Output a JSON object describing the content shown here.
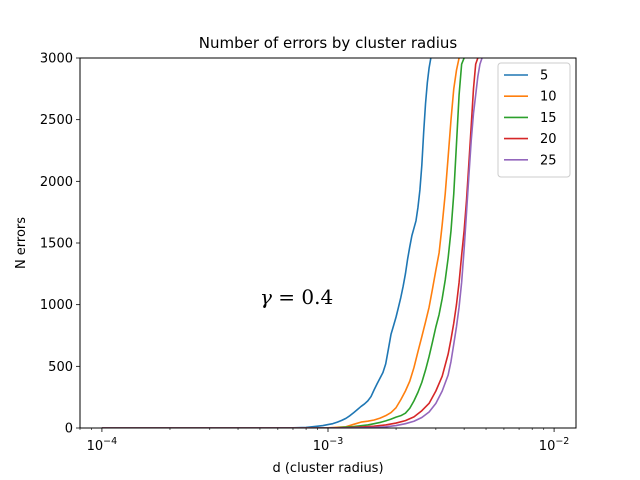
{
  "chart_data": {
    "type": "line",
    "title": "Number of errors by cluster radius",
    "xlabel": "d (cluster radius)",
    "ylabel": "N errors",
    "xscale": "log",
    "xlim": [
      8e-05,
      0.0125
    ],
    "ylim": [
      0,
      3000
    ],
    "xticks": [
      {
        "value": 0.0001,
        "base": "10",
        "exp": "−4"
      },
      {
        "value": 0.001,
        "base": "10",
        "exp": "−3"
      },
      {
        "value": 0.01,
        "base": "10",
        "exp": "−2"
      }
    ],
    "yticks": [
      0,
      500,
      1000,
      1500,
      2000,
      2500,
      3000
    ],
    "grid": false,
    "legend_position": "top-right",
    "annotation": {
      "prefix": "γ",
      "equals": " = 0.4",
      "x": 0.0007,
      "y": 1050
    },
    "series": [
      {
        "name": "5",
        "color": "#1f77b4",
        "points": [
          [
            0.0001,
            0
          ],
          [
            0.0005,
            0
          ],
          [
            0.0007,
            2
          ],
          [
            0.0008,
            5
          ],
          [
            0.00085,
            10
          ],
          [
            0.0009,
            15
          ],
          [
            0.00095,
            20
          ],
          [
            0.001,
            28
          ],
          [
            0.00105,
            35
          ],
          [
            0.0011,
            48
          ],
          [
            0.00115,
            62
          ],
          [
            0.0012,
            78
          ],
          [
            0.00125,
            100
          ],
          [
            0.0013,
            125
          ],
          [
            0.00135,
            150
          ],
          [
            0.0014,
            175
          ],
          [
            0.00145,
            195
          ],
          [
            0.0015,
            220
          ],
          [
            0.00155,
            255
          ],
          [
            0.0016,
            310
          ],
          [
            0.00165,
            360
          ],
          [
            0.0017,
            405
          ],
          [
            0.00175,
            450
          ],
          [
            0.0018,
            520
          ],
          [
            0.00185,
            640
          ],
          [
            0.0019,
            760
          ],
          [
            0.00195,
            830
          ],
          [
            0.002,
            900
          ],
          [
            0.00205,
            980
          ],
          [
            0.0021,
            1060
          ],
          [
            0.00215,
            1150
          ],
          [
            0.0022,
            1250
          ],
          [
            0.00225,
            1370
          ],
          [
            0.0023,
            1470
          ],
          [
            0.00235,
            1560
          ],
          [
            0.0024,
            1620
          ],
          [
            0.00245,
            1680
          ],
          [
            0.0025,
            1790
          ],
          [
            0.00255,
            1930
          ],
          [
            0.0026,
            2130
          ],
          [
            0.00265,
            2400
          ],
          [
            0.0027,
            2630
          ],
          [
            0.00275,
            2800
          ],
          [
            0.0028,
            2920
          ],
          [
            0.00285,
            3000
          ]
        ]
      },
      {
        "name": "10",
        "color": "#ff7f0e",
        "points": [
          [
            0.0001,
            0
          ],
          [
            0.0008,
            0
          ],
          [
            0.001,
            2
          ],
          [
            0.0012,
            10
          ],
          [
            0.0013,
            30
          ],
          [
            0.0014,
            48
          ],
          [
            0.0015,
            55
          ],
          [
            0.0016,
            65
          ],
          [
            0.0017,
            80
          ],
          [
            0.0018,
            100
          ],
          [
            0.0019,
            125
          ],
          [
            0.002,
            165
          ],
          [
            0.0021,
            230
          ],
          [
            0.0022,
            300
          ],
          [
            0.0023,
            380
          ],
          [
            0.0024,
            490
          ],
          [
            0.0025,
            620
          ],
          [
            0.0026,
            740
          ],
          [
            0.0027,
            860
          ],
          [
            0.0028,
            980
          ],
          [
            0.0029,
            1130
          ],
          [
            0.003,
            1280
          ],
          [
            0.0031,
            1420
          ],
          [
            0.0032,
            1650
          ],
          [
            0.0033,
            1900
          ],
          [
            0.0034,
            2200
          ],
          [
            0.0035,
            2500
          ],
          [
            0.0036,
            2750
          ],
          [
            0.0037,
            2900
          ],
          [
            0.0038,
            3000
          ]
        ]
      },
      {
        "name": "15",
        "color": "#2ca02c",
        "points": [
          [
            0.0001,
            0
          ],
          [
            0.0009,
            0
          ],
          [
            0.0011,
            3
          ],
          [
            0.0013,
            12
          ],
          [
            0.0015,
            25
          ],
          [
            0.0016,
            35
          ],
          [
            0.0017,
            45
          ],
          [
            0.0018,
            58
          ],
          [
            0.0019,
            72
          ],
          [
            0.002,
            88
          ],
          [
            0.0021,
            100
          ],
          [
            0.0022,
            120
          ],
          [
            0.0023,
            160
          ],
          [
            0.0024,
            220
          ],
          [
            0.0025,
            290
          ],
          [
            0.0026,
            370
          ],
          [
            0.0027,
            470
          ],
          [
            0.0028,
            580
          ],
          [
            0.0029,
            700
          ],
          [
            0.003,
            820
          ],
          [
            0.0031,
            920
          ],
          [
            0.0032,
            1050
          ],
          [
            0.0033,
            1200
          ],
          [
            0.0034,
            1380
          ],
          [
            0.0035,
            1600
          ],
          [
            0.0036,
            1900
          ],
          [
            0.0037,
            2300
          ],
          [
            0.0038,
            2700
          ],
          [
            0.0039,
            2950
          ],
          [
            0.004,
            3000
          ]
        ]
      },
      {
        "name": "20",
        "color": "#d62728",
        "points": [
          [
            0.0001,
            0
          ],
          [
            0.001,
            0
          ],
          [
            0.0012,
            2
          ],
          [
            0.0014,
            8
          ],
          [
            0.0016,
            15
          ],
          [
            0.0018,
            25
          ],
          [
            0.002,
            40
          ],
          [
            0.0022,
            60
          ],
          [
            0.0024,
            90
          ],
          [
            0.0026,
            140
          ],
          [
            0.0028,
            200
          ],
          [
            0.003,
            300
          ],
          [
            0.0032,
            420
          ],
          [
            0.0034,
            600
          ],
          [
            0.0035,
            720
          ],
          [
            0.0036,
            850
          ],
          [
            0.0037,
            1000
          ],
          [
            0.0038,
            1180
          ],
          [
            0.0039,
            1400
          ],
          [
            0.004,
            1600
          ],
          [
            0.0041,
            1850
          ],
          [
            0.0042,
            2150
          ],
          [
            0.0043,
            2450
          ],
          [
            0.0044,
            2750
          ],
          [
            0.0045,
            2950
          ],
          [
            0.0046,
            3000
          ]
        ]
      },
      {
        "name": "25",
        "color": "#9467bd",
        "points": [
          [
            0.0001,
            0
          ],
          [
            0.0011,
            0
          ],
          [
            0.0014,
            2
          ],
          [
            0.0016,
            5
          ],
          [
            0.0018,
            10
          ],
          [
            0.002,
            20
          ],
          [
            0.0022,
            35
          ],
          [
            0.0024,
            55
          ],
          [
            0.0026,
            85
          ],
          [
            0.0028,
            130
          ],
          [
            0.003,
            200
          ],
          [
            0.0032,
            300
          ],
          [
            0.0034,
            430
          ],
          [
            0.0035,
            540
          ],
          [
            0.0036,
            680
          ],
          [
            0.0037,
            820
          ],
          [
            0.0038,
            980
          ],
          [
            0.0039,
            1180
          ],
          [
            0.004,
            1450
          ],
          [
            0.0041,
            1750
          ],
          [
            0.0042,
            2050
          ],
          [
            0.0043,
            2330
          ],
          [
            0.0044,
            2550
          ],
          [
            0.0045,
            2700
          ],
          [
            0.0046,
            2850
          ],
          [
            0.0047,
            2950
          ],
          [
            0.0048,
            3000
          ]
        ]
      }
    ]
  }
}
